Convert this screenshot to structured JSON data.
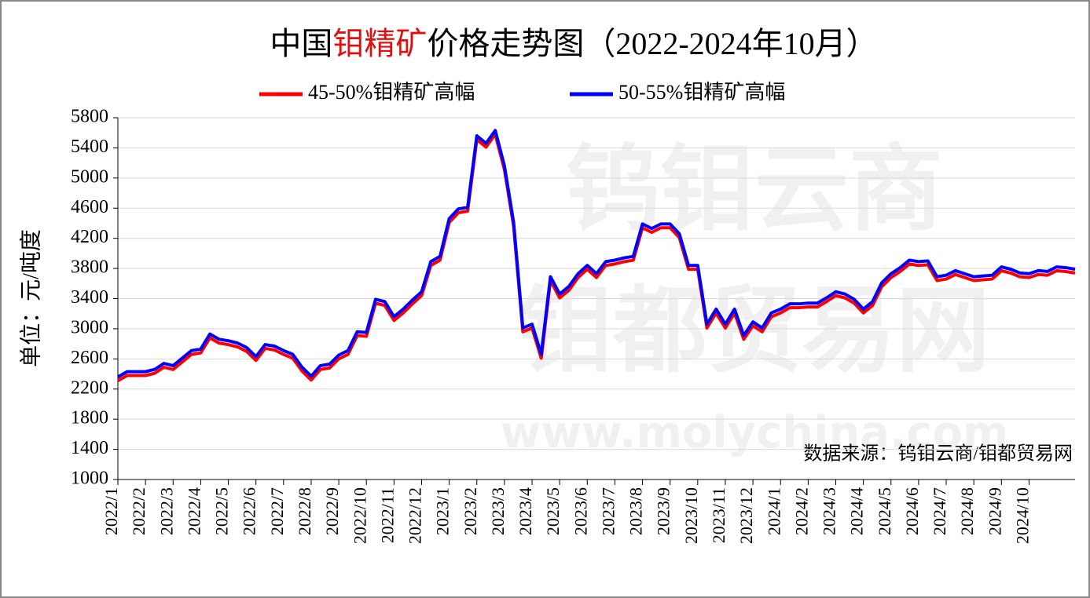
{
  "chart_data": {
    "type": "line",
    "title": [
      {
        "text": "中国",
        "color": "#000000"
      },
      {
        "text": "钼精矿",
        "color": "#e01010"
      },
      {
        "text": "价格走势图（2022-2024年10月）",
        "color": "#000000"
      }
    ],
    "y_axis_label": "单位：元/吨度",
    "source_note": "数据来源：钨钼云商/钼都贸易网",
    "watermark": [
      "钨钼云商",
      "钼都贸易网",
      "www.molychina.com"
    ],
    "categories": [
      "2022/1",
      null,
      null,
      "2022/2",
      null,
      null,
      "2022/3",
      null,
      null,
      "2022/4",
      null,
      null,
      "2022/5",
      null,
      null,
      "2022/6",
      null,
      null,
      "2022/7",
      null,
      null,
      "2022/8",
      null,
      null,
      "2022/9",
      null,
      null,
      "2022/10",
      null,
      null,
      "2022/11",
      null,
      null,
      "2022/12",
      null,
      null,
      "2023/1",
      null,
      null,
      "2023/2",
      null,
      null,
      "2023/3",
      null,
      null,
      "2023/4",
      null,
      null,
      "2023/5",
      null,
      null,
      "2023/6",
      null,
      null,
      "2023/7",
      null,
      null,
      "2023/8",
      null,
      null,
      "2023/9",
      null,
      null,
      "2023/10",
      null,
      null,
      "2023/11",
      null,
      null,
      "2023/12",
      null,
      null,
      "2024/1",
      null,
      null,
      "2024/2",
      null,
      null,
      "2024/3",
      null,
      null,
      "2024/4",
      null,
      null,
      "2024/5",
      null,
      null,
      "2024/6",
      null,
      null,
      "2024/7",
      null,
      null,
      "2024/8",
      null,
      null,
      "2024/9",
      null,
      null,
      "2024/10",
      null,
      null,
      null,
      null,
      null
    ],
    "series": [
      {
        "name": "45-50%钼精矿高幅",
        "color": "#ff0000",
        "values": [
          2320,
          2390,
          2390,
          2390,
          2420,
          2500,
          2470,
          2570,
          2670,
          2690,
          2890,
          2820,
          2800,
          2770,
          2710,
          2590,
          2750,
          2730,
          2670,
          2620,
          2450,
          2330,
          2470,
          2490,
          2610,
          2670,
          2920,
          2910,
          3350,
          3320,
          3120,
          3220,
          3340,
          3450,
          3850,
          3920,
          4420,
          4550,
          4570,
          5520,
          5420,
          5590,
          5120,
          4370,
          2970,
          3020,
          2620,
          3650,
          3420,
          3520,
          3690,
          3800,
          3690,
          3850,
          3870,
          3900,
          3920,
          4350,
          4290,
          4350,
          4350,
          4220,
          3800,
          3800,
          3020,
          3220,
          3020,
          3220,
          2870,
          3050,
          2970,
          3170,
          3220,
          3290,
          3290,
          3300,
          3300,
          3370,
          3450,
          3420,
          3350,
          3220,
          3320,
          3570,
          3690,
          3770,
          3870,
          3850,
          3860,
          3650,
          3670,
          3730,
          3690,
          3650,
          3660,
          3670,
          3780,
          3750,
          3700,
          3690,
          3730,
          3720,
          3780,
          3770,
          3750
        ]
      },
      {
        "name": "50-55%钼精矿高幅",
        "color": "#0000ff",
        "values": [
          2350,
          2420,
          2420,
          2420,
          2450,
          2530,
          2500,
          2600,
          2700,
          2720,
          2920,
          2850,
          2830,
          2800,
          2740,
          2620,
          2780,
          2760,
          2700,
          2650,
          2480,
          2360,
          2500,
          2520,
          2640,
          2700,
          2950,
          2940,
          3380,
          3350,
          3150,
          3250,
          3370,
          3480,
          3880,
          3950,
          4450,
          4580,
          4600,
          5550,
          5450,
          5620,
          5150,
          4400,
          3000,
          3050,
          2650,
          3680,
          3450,
          3550,
          3720,
          3830,
          3720,
          3880,
          3900,
          3930,
          3950,
          4380,
          4320,
          4380,
          4380,
          4250,
          3830,
          3830,
          3050,
          3250,
          3050,
          3250,
          2900,
          3080,
          3000,
          3200,
          3250,
          3320,
          3320,
          3330,
          3330,
          3400,
          3480,
          3450,
          3380,
          3250,
          3350,
          3600,
          3720,
          3800,
          3900,
          3880,
          3890,
          3680,
          3700,
          3760,
          3720,
          3680,
          3690,
          3700,
          3810,
          3780,
          3730,
          3720,
          3760,
          3750,
          3810,
          3800,
          3780
        ]
      }
    ],
    "ylim": [
      1000,
      5800
    ],
    "yticks": [
      1000,
      1400,
      1800,
      2200,
      2600,
      3000,
      3400,
      3800,
      4200,
      4600,
      5000,
      5400,
      5800
    ],
    "grid": true,
    "legend": "top"
  }
}
